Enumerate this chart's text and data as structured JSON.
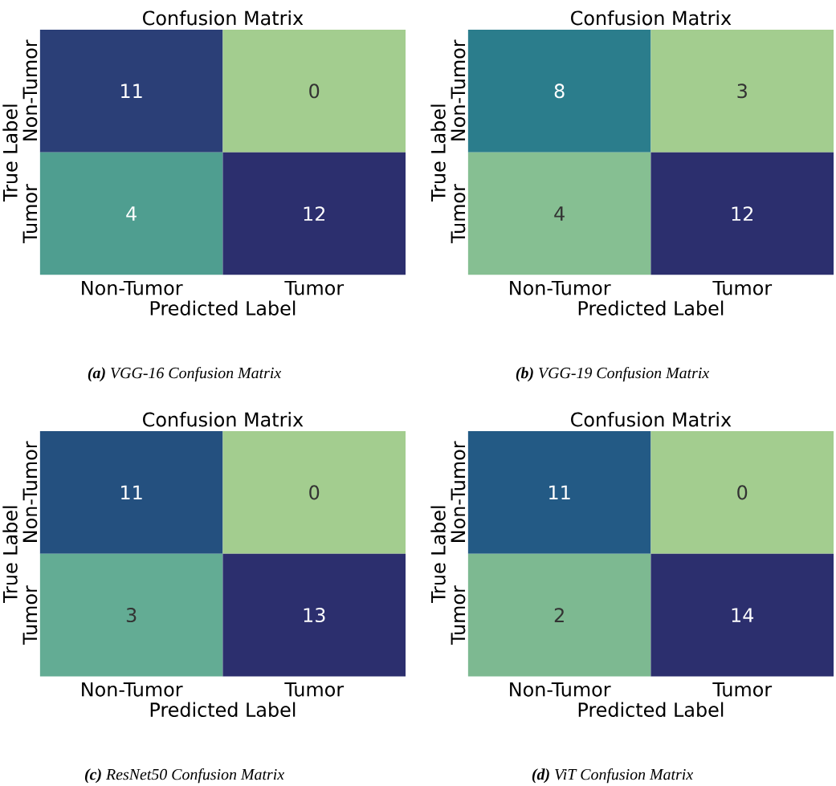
{
  "chart_data": [
    {
      "type": "heatmap",
      "title": "Confusion Matrix",
      "xlabel": "Predicted Label",
      "ylabel": "True Label",
      "categories": [
        "Non-Tumor",
        "Tumor"
      ],
      "y_categories": [
        "Non-Tumor",
        "Tumor"
      ],
      "cells": [
        [
          11,
          0
        ],
        [
          4,
          12
        ]
      ],
      "colors": [
        [
          "#2b3f77",
          "#a3cd8f"
        ],
        [
          "#4f9e90",
          "#2c2f6e"
        ]
      ],
      "data_labels": true,
      "annotations": [
        "**(a)** VGG-16 Confusion Matrix"
      ]
    },
    {
      "type": "heatmap",
      "title": "Confusion Matrix",
      "xlabel": "Predicted Label",
      "ylabel": "True Label",
      "categories": [
        "Non-Tumor",
        "Tumor"
      ],
      "y_categories": [
        "Non-Tumor",
        "Tumor"
      ],
      "cells": [
        [
          8,
          3
        ],
        [
          4,
          12
        ]
      ],
      "colors": [
        [
          "#2b7d8c",
          "#a3cd8f"
        ],
        [
          "#86bf92",
          "#2c2f6e"
        ]
      ],
      "data_labels": true,
      "annotations": [
        "**(b)** VGG-19 Confusion Matrix"
      ]
    },
    {
      "type": "heatmap",
      "title": "Confusion Matrix",
      "xlabel": "Predicted Label",
      "ylabel": "True Label",
      "categories": [
        "Non-Tumor",
        "Tumor"
      ],
      "y_categories": [
        "Non-Tumor",
        "Tumor"
      ],
      "cells": [
        [
          11,
          0
        ],
        [
          3,
          13
        ]
      ],
      "colors": [
        [
          "#24507f",
          "#a3cd8f"
        ],
        [
          "#63ac94",
          "#2c2f6e"
        ]
      ],
      "data_labels": true,
      "annotations": [
        "**(c)** ResNet50 Confusion Matrix"
      ]
    },
    {
      "type": "heatmap",
      "title": "Confusion Matrix",
      "xlabel": "Predicted Label",
      "ylabel": "True Label",
      "categories": [
        "Non-Tumor",
        "Tumor"
      ],
      "y_categories": [
        "Non-Tumor",
        "Tumor"
      ],
      "cells": [
        [
          11,
          0
        ],
        [
          2,
          14
        ]
      ],
      "colors": [
        [
          "#235a85",
          "#a3cd8f"
        ],
        [
          "#7db991",
          "#2c2f6e"
        ]
      ],
      "data_labels": true,
      "annotations": [
        "**(d)** ViT Confusion Matrix"
      ]
    }
  ]
}
